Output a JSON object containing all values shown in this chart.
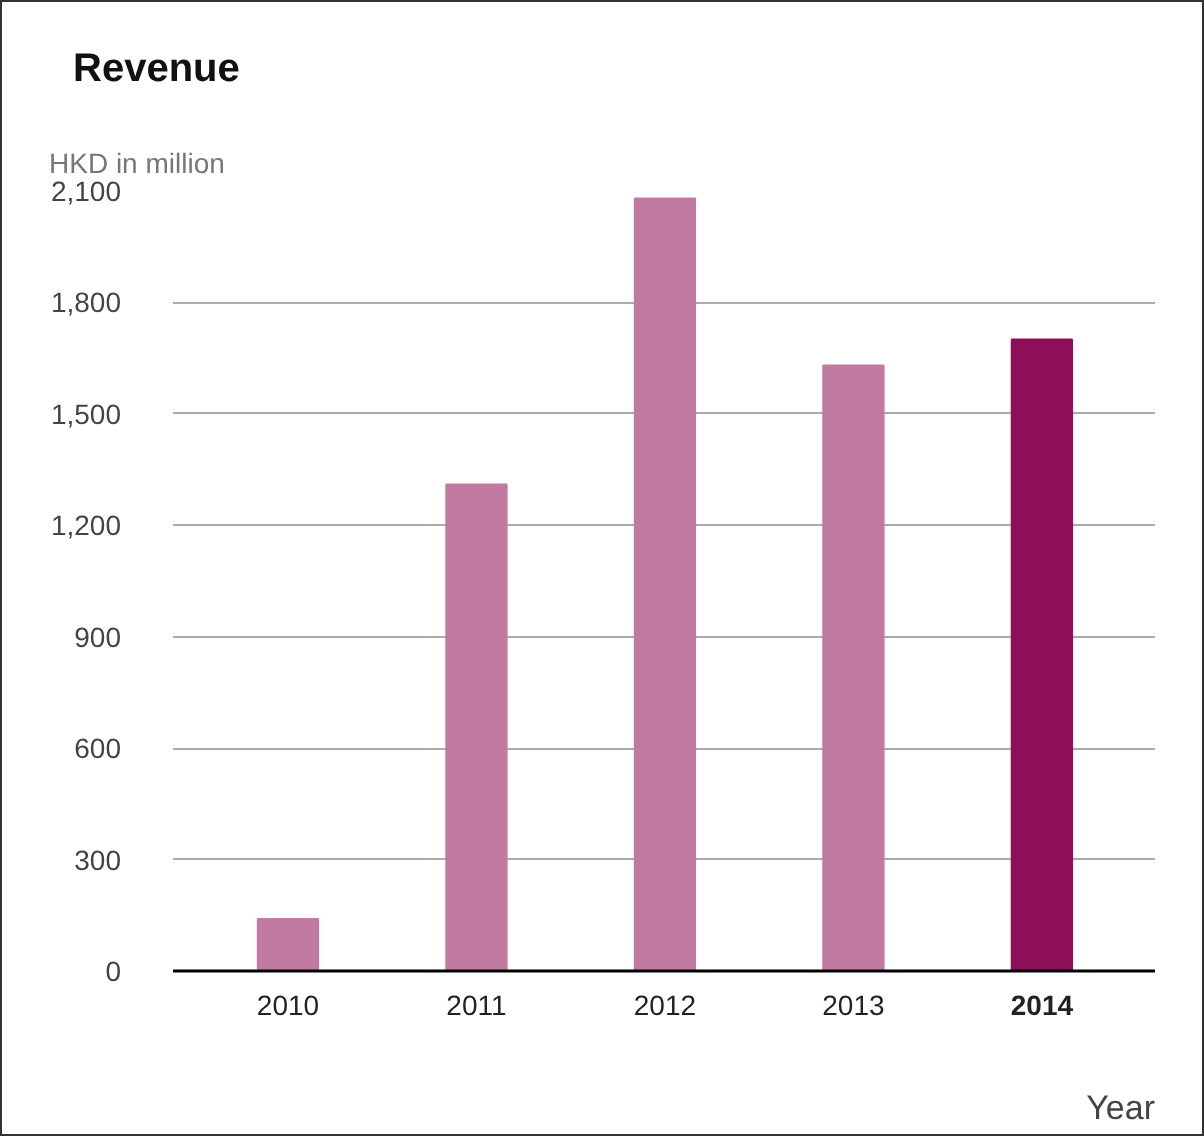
{
  "chart_data": {
    "type": "bar",
    "title": "Revenue",
    "ylabel": "HKD in million",
    "xlabel": "Year",
    "categories": [
      "2010",
      "2011",
      "2012",
      "2013",
      "2014"
    ],
    "values": [
      140,
      1310,
      2080,
      1630,
      1700
    ],
    "colors": [
      "#c07aa0",
      "#c07aa0",
      "#c07aa0",
      "#c07aa0",
      "#8e0f5a"
    ],
    "ylim": [
      0,
      2100
    ],
    "yticks": [
      0,
      300,
      600,
      900,
      {
        "value": 1200,
        "label": "1,200"
      },
      {
        "value": 1500,
        "label": "1,500"
      },
      {
        "value": 1800,
        "label": "1,800"
      },
      {
        "value": 2100,
        "label": "2,100"
      }
    ],
    "grid": "y"
  }
}
